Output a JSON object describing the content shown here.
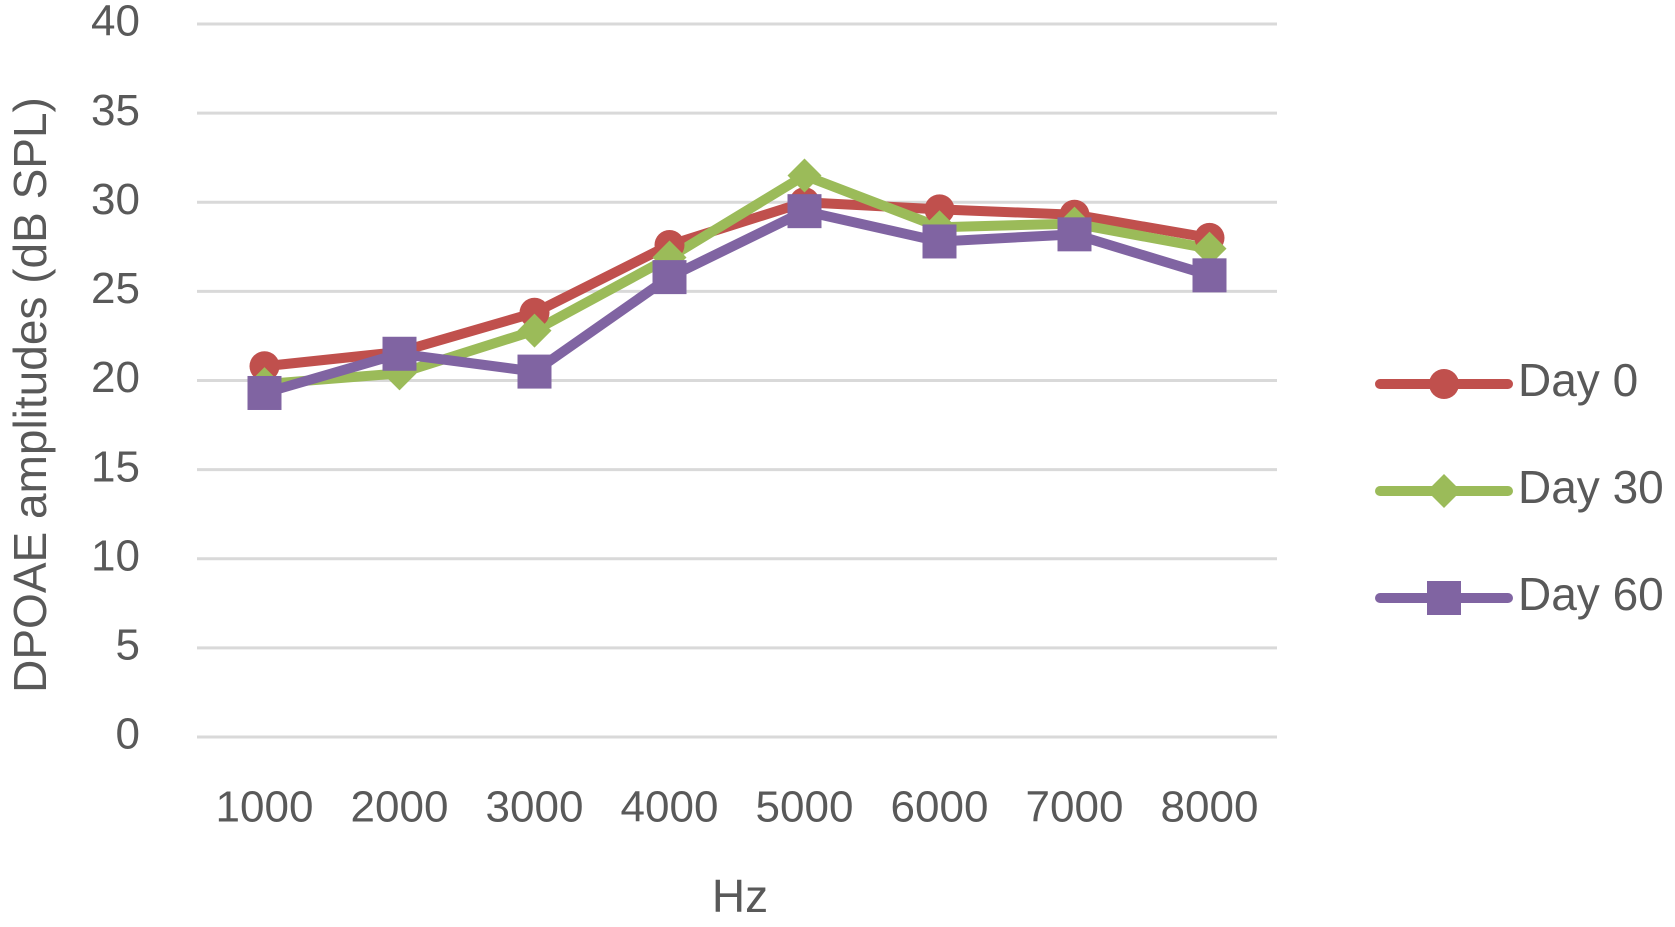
{
  "chart_data": {
    "type": "line",
    "title": "",
    "xlabel": "Hz",
    "ylabel": "DPOAE amplitudes (dB SPL)",
    "categories": [
      "1000",
      "2000",
      "3000",
      "4000",
      "5000",
      "6000",
      "7000",
      "8000"
    ],
    "ylim": [
      0,
      40
    ],
    "yticks": [
      0,
      5,
      10,
      15,
      20,
      25,
      30,
      35,
      40
    ],
    "grid": true,
    "legend_position": "right",
    "series": [
      {
        "name": "Day 0",
        "color": "#c0504d",
        "marker": "circle",
        "values": [
          20.8,
          21.6,
          23.8,
          27.6,
          30.0,
          29.6,
          29.3,
          28.0
        ]
      },
      {
        "name": "Day 30",
        "color": "#9bbb59",
        "marker": "diamond",
        "values": [
          19.8,
          20.4,
          22.8,
          26.9,
          31.5,
          28.6,
          28.8,
          27.4
        ]
      },
      {
        "name": "Day 60",
        "color": "#8064a2",
        "marker": "square",
        "values": [
          19.3,
          21.5,
          20.5,
          25.8,
          29.5,
          27.8,
          28.2,
          25.9
        ]
      }
    ]
  }
}
